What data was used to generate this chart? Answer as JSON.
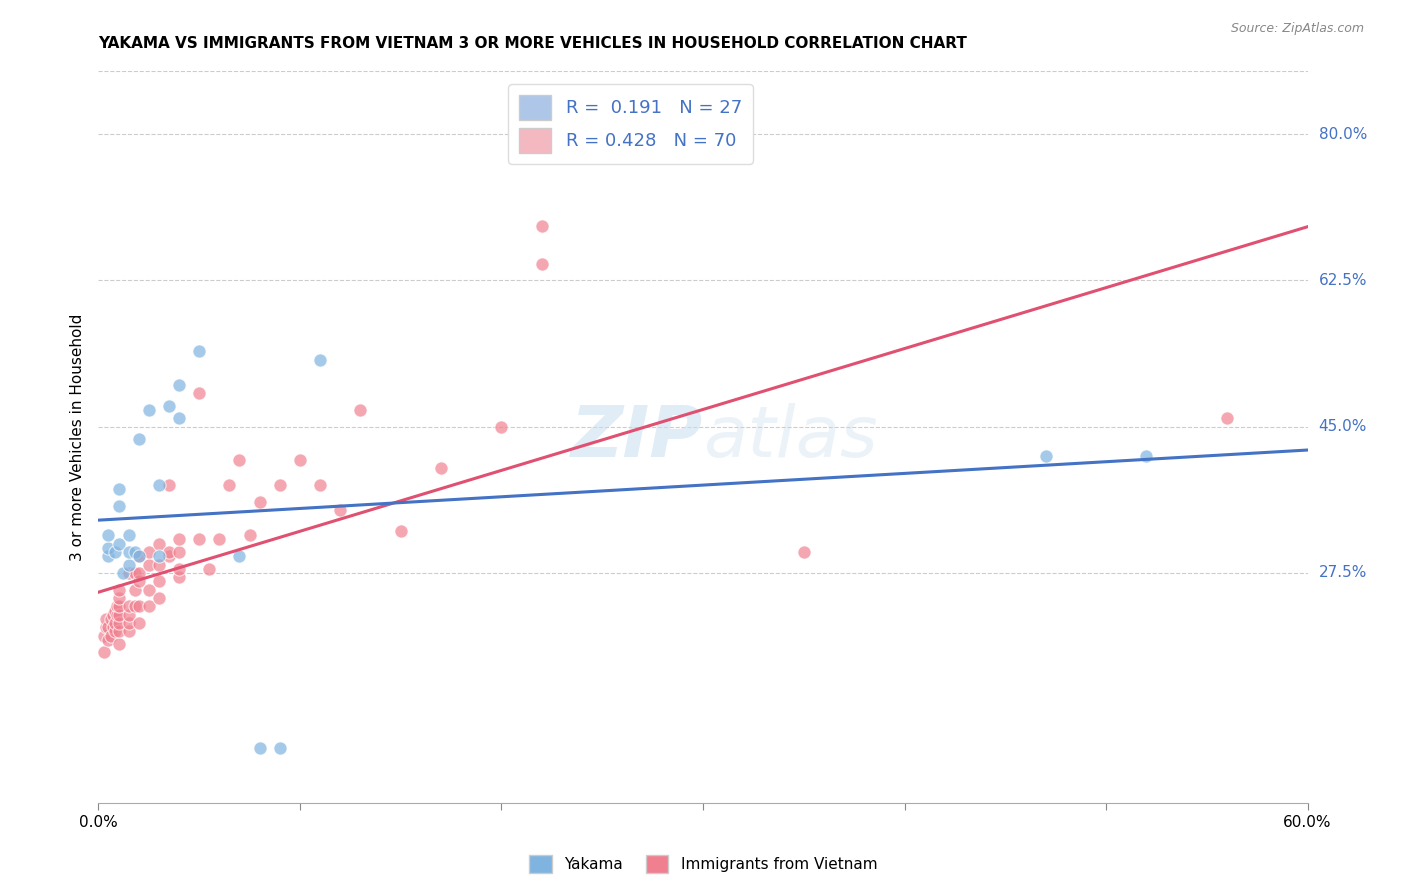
{
  "title": "YAKAMA VS IMMIGRANTS FROM VIETNAM 3 OR MORE VEHICLES IN HOUSEHOLD CORRELATION CHART",
  "source": "Source: ZipAtlas.com",
  "ylabel": "3 or more Vehicles in Household",
  "xlim": [
    0.0,
    0.6
  ],
  "ylim": [
    0.0,
    0.875
  ],
  "xticks": [
    0.0,
    0.1,
    0.2,
    0.3,
    0.4,
    0.5,
    0.6
  ],
  "xticklabels": [
    "0.0%",
    "",
    "",
    "",
    "",
    "",
    "60.0%"
  ],
  "yticks_right": [
    0.275,
    0.45,
    0.625,
    0.8
  ],
  "yticks_right_labels": [
    "27.5%",
    "45.0%",
    "62.5%",
    "80.0%"
  ],
  "legend_items": [
    {
      "label": "R =  0.191   N = 27",
      "color": "#aec6e8"
    },
    {
      "label": "R = 0.428   N = 70",
      "color": "#f4b8c1"
    }
  ],
  "series1_label": "Yakama",
  "series2_label": "Immigrants from Vietnam",
  "series1_color": "#7fb3e0",
  "series2_color": "#f08090",
  "trendline1_color": "#4472c4",
  "trendline2_color": "#e05070",
  "watermark_zip": "ZIP",
  "watermark_atlas": "atlas",
  "background_color": "#ffffff",
  "yakama_x": [
    0.005,
    0.005,
    0.005,
    0.008,
    0.01,
    0.01,
    0.01,
    0.012,
    0.015,
    0.015,
    0.015,
    0.018,
    0.02,
    0.02,
    0.025,
    0.03,
    0.03,
    0.035,
    0.04,
    0.04,
    0.05,
    0.07,
    0.08,
    0.09,
    0.11,
    0.47,
    0.52
  ],
  "yakama_y": [
    0.295,
    0.305,
    0.32,
    0.3,
    0.31,
    0.355,
    0.375,
    0.275,
    0.285,
    0.3,
    0.32,
    0.3,
    0.295,
    0.435,
    0.47,
    0.295,
    0.38,
    0.475,
    0.46,
    0.5,
    0.54,
    0.295,
    0.065,
    0.065,
    0.53,
    0.415,
    0.415
  ],
  "vietnam_x": [
    0.003,
    0.003,
    0.004,
    0.004,
    0.005,
    0.005,
    0.006,
    0.006,
    0.007,
    0.007,
    0.008,
    0.008,
    0.008,
    0.009,
    0.009,
    0.01,
    0.01,
    0.01,
    0.01,
    0.01,
    0.01,
    0.01,
    0.015,
    0.015,
    0.015,
    0.015,
    0.015,
    0.018,
    0.018,
    0.018,
    0.02,
    0.02,
    0.02,
    0.02,
    0.02,
    0.025,
    0.025,
    0.025,
    0.025,
    0.03,
    0.03,
    0.03,
    0.03,
    0.035,
    0.035,
    0.035,
    0.04,
    0.04,
    0.04,
    0.04,
    0.05,
    0.05,
    0.055,
    0.06,
    0.065,
    0.07,
    0.075,
    0.08,
    0.09,
    0.1,
    0.11,
    0.12,
    0.13,
    0.15,
    0.17,
    0.2,
    0.22,
    0.22,
    0.35,
    0.56
  ],
  "vietnam_y": [
    0.18,
    0.2,
    0.21,
    0.22,
    0.195,
    0.21,
    0.2,
    0.22,
    0.21,
    0.225,
    0.205,
    0.215,
    0.23,
    0.225,
    0.235,
    0.19,
    0.205,
    0.215,
    0.225,
    0.235,
    0.245,
    0.255,
    0.205,
    0.215,
    0.225,
    0.235,
    0.275,
    0.235,
    0.255,
    0.275,
    0.215,
    0.235,
    0.265,
    0.275,
    0.295,
    0.235,
    0.255,
    0.285,
    0.3,
    0.245,
    0.265,
    0.285,
    0.31,
    0.295,
    0.3,
    0.38,
    0.27,
    0.28,
    0.3,
    0.315,
    0.315,
    0.49,
    0.28,
    0.315,
    0.38,
    0.41,
    0.32,
    0.36,
    0.38,
    0.41,
    0.38,
    0.35,
    0.47,
    0.325,
    0.4,
    0.45,
    0.645,
    0.69,
    0.3,
    0.46
  ]
}
